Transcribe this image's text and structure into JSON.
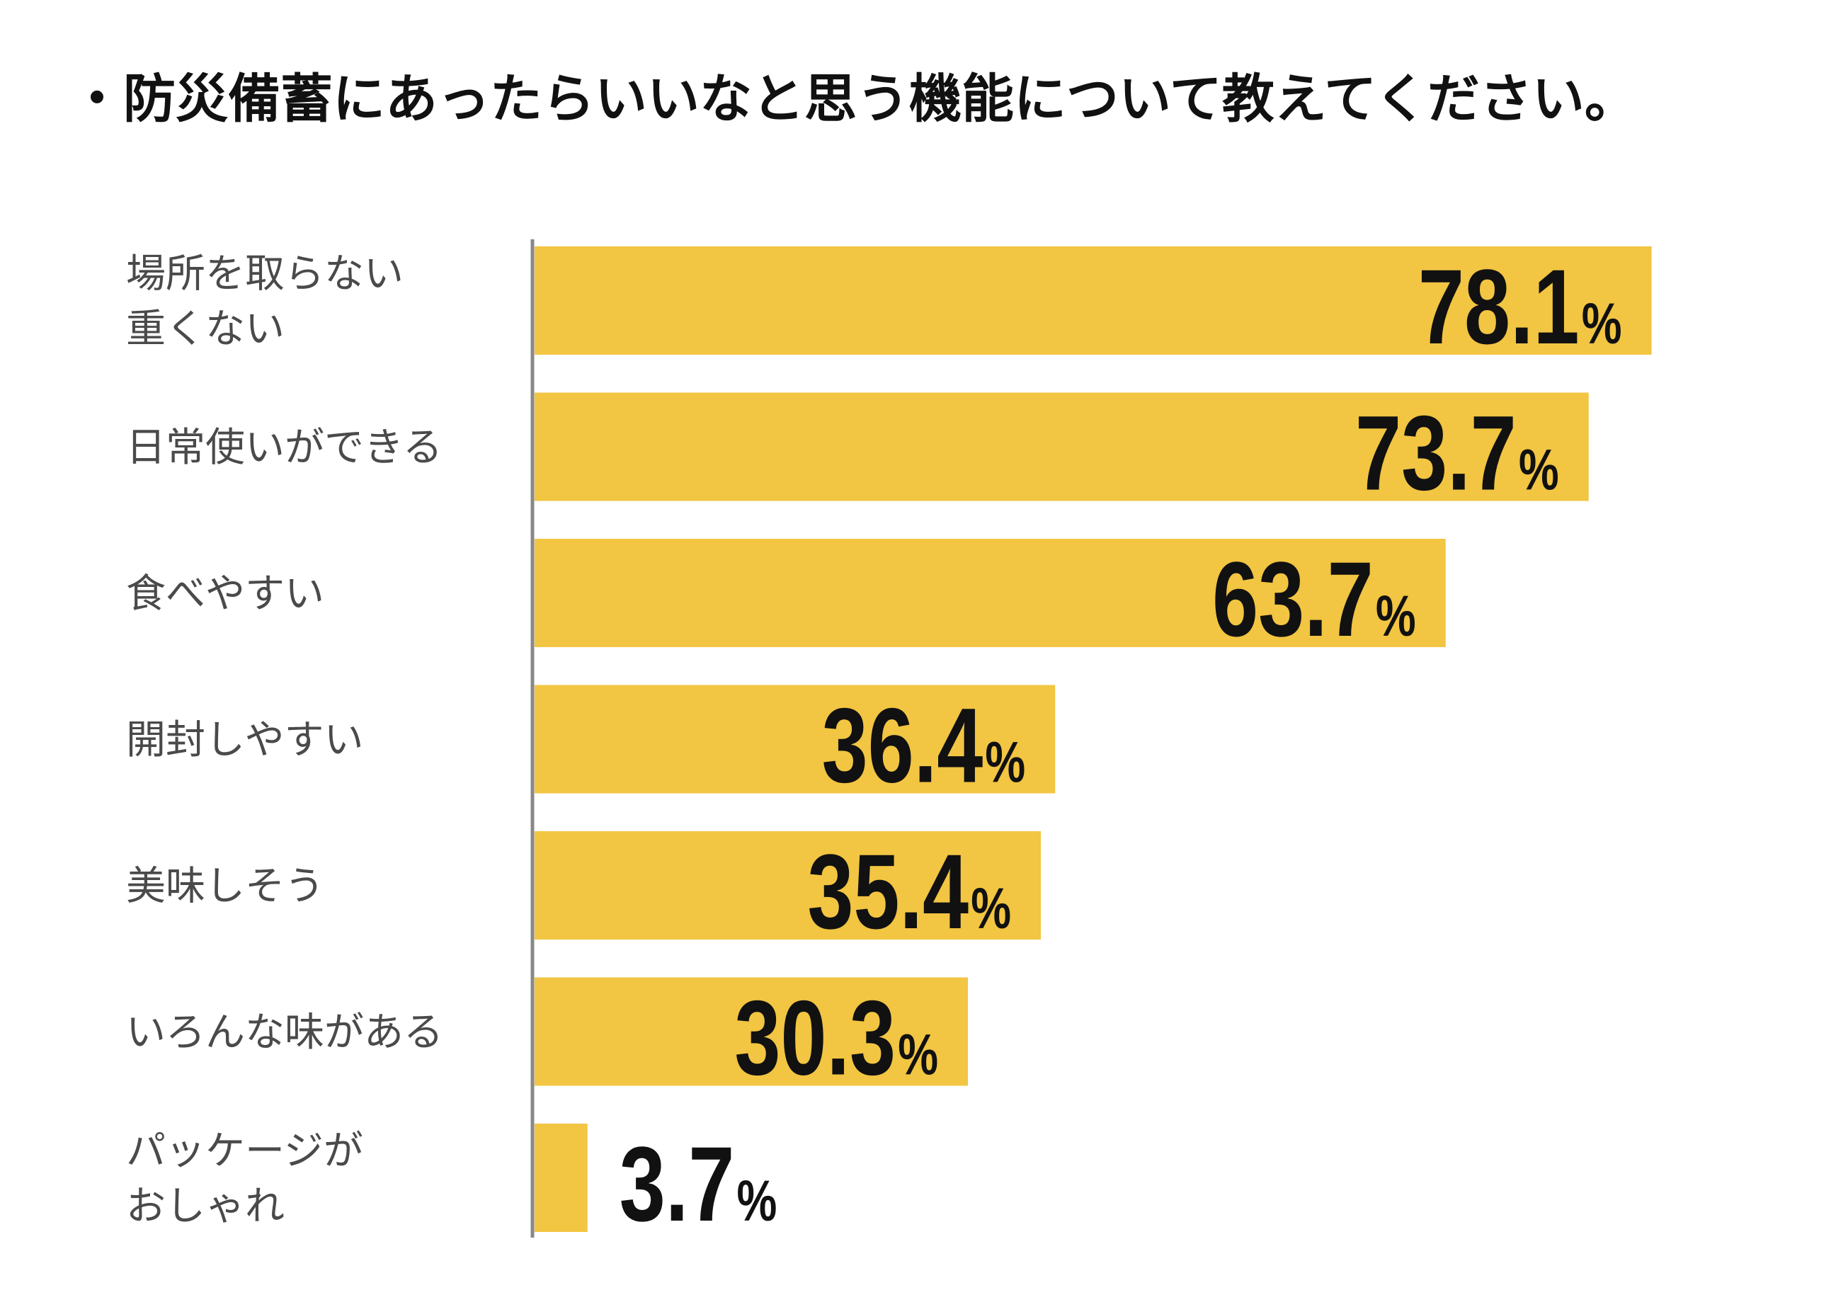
{
  "chart_data": {
    "type": "bar",
    "orientation": "horizontal",
    "title": "・防災備蓄にあったらいいなと思う機能について教えてください。",
    "categories": [
      [
        "場所を取らない",
        "重くない"
      ],
      [
        "日常使いができる"
      ],
      [
        "食べやすい"
      ],
      [
        "開封しやすい"
      ],
      [
        "美味しそう"
      ],
      [
        "いろんな味がある"
      ],
      [
        "パッケージが",
        "おしゃれ"
      ]
    ],
    "values": [
      78.1,
      73.7,
      63.7,
      36.4,
      35.4,
      30.3,
      3.7
    ],
    "value_labels": [
      "78.1",
      "73.7",
      "63.7",
      "36.4",
      "35.4",
      "30.3",
      "3.7"
    ],
    "unit": "%",
    "xlim": [
      0,
      100
    ],
    "grid": false,
    "legend": "none",
    "bar_color": "#f2c542",
    "axis_color": "#888888",
    "label_color": "#4a4a4a",
    "value_color": "#111111"
  }
}
